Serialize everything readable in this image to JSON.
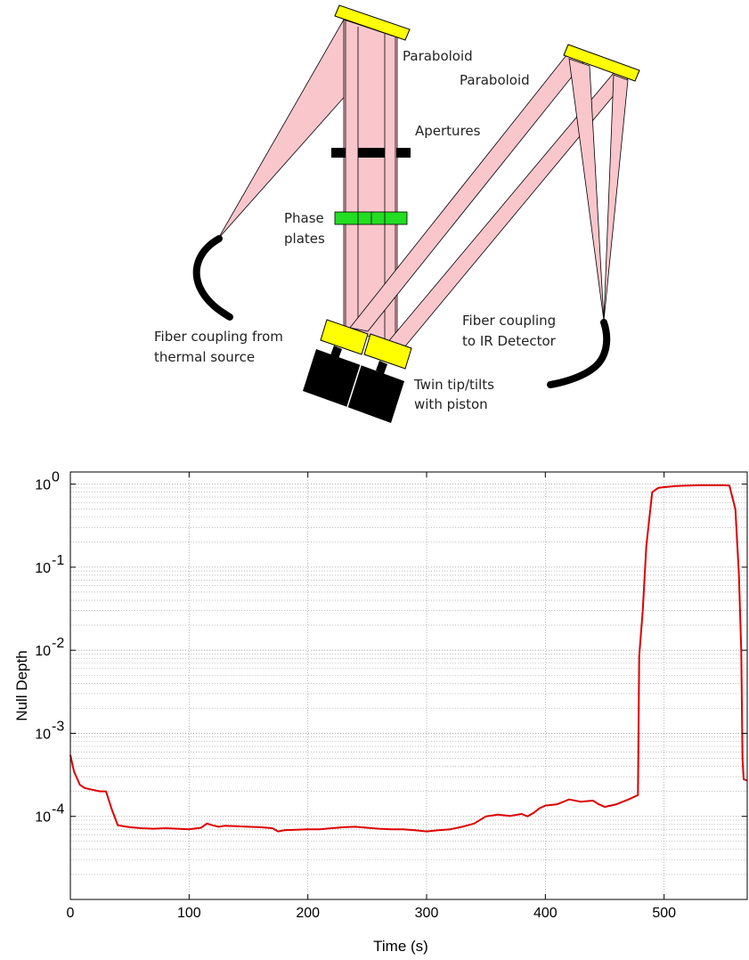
{
  "diagram": {
    "labels": {
      "paraboloid_left": "Paraboloid",
      "paraboloid_right": "Paraboloid",
      "apertures": "Apertures",
      "phase_line1": "Phase",
      "phase_line2": "plates",
      "fiber_source_line1": "Fiber coupling from",
      "fiber_source_line2": "thermal source",
      "fiber_detector_line1": "Fiber coupling",
      "fiber_detector_line2": "to IR Detector",
      "tiptilt_line1": "Twin tip/tilts",
      "tiptilt_line2": "with piston"
    },
    "colors": {
      "mirror": "#ffff00",
      "beam": "#f9c6cc",
      "phase_plate": "#22dd22",
      "fiber": "#000000",
      "actuator": "#000000"
    }
  },
  "chart_data": {
    "type": "line",
    "title": "",
    "xlabel": "Time (s)",
    "ylabel": "Null Depth",
    "xlim": [
      0,
      570
    ],
    "ylim": [
      1e-05,
      1.4
    ],
    "yscale": "log",
    "grid": true,
    "minor_grid": true,
    "x_ticks": [
      0,
      100,
      200,
      300,
      400,
      500
    ],
    "y_ticks": [
      {
        "value": 0.0001,
        "base": "10",
        "exp": "-4"
      },
      {
        "value": 0.001,
        "base": "10",
        "exp": "-3"
      },
      {
        "value": 0.01,
        "base": "10",
        "exp": "-2"
      },
      {
        "value": 0.1,
        "base": "10",
        "exp": "-1"
      },
      {
        "value": 1,
        "base": "10",
        "exp": "0"
      }
    ],
    "series": [
      {
        "color": "#dd0000",
        "x": [
          0,
          3,
          8,
          12,
          18,
          25,
          30,
          35,
          40,
          50,
          60,
          70,
          80,
          90,
          100,
          110,
          115,
          120,
          125,
          130,
          140,
          150,
          160,
          170,
          175,
          180,
          190,
          200,
          210,
          220,
          230,
          240,
          250,
          260,
          270,
          280,
          290,
          300,
          310,
          320,
          330,
          340,
          350,
          360,
          370,
          380,
          385,
          390,
          395,
          400,
          410,
          420,
          430,
          440,
          445,
          450,
          460,
          470,
          478,
          479,
          482,
          485,
          490,
          495,
          500,
          510,
          520,
          530,
          540,
          550,
          555,
          560,
          563,
          565,
          566,
          567,
          570
        ],
        "y": [
          0.00055,
          0.00035,
          0.00024,
          0.00022,
          0.00021,
          0.0002,
          0.0002,
          0.00012,
          7.8e-05,
          7.4e-05,
          7.2e-05,
          7.1e-05,
          7.2e-05,
          7.1e-05,
          7e-05,
          7.3e-05,
          8.2e-05,
          7.8e-05,
          7.5e-05,
          7.7e-05,
          7.6e-05,
          7.5e-05,
          7.4e-05,
          7.2e-05,
          6.6e-05,
          6.8e-05,
          6.9e-05,
          7e-05,
          7e-05,
          7.2e-05,
          7.4e-05,
          7.5e-05,
          7.3e-05,
          7.1e-05,
          7e-05,
          7e-05,
          6.8e-05,
          6.6e-05,
          6.8e-05,
          7e-05,
          7.5e-05,
          8.2e-05,
          0.0001,
          0.000105,
          0.000101,
          0.000107,
          0.0001,
          0.00011,
          0.000125,
          0.000135,
          0.00014,
          0.00016,
          0.00015,
          0.000155,
          0.00014,
          0.00013,
          0.00014,
          0.00016,
          0.00018,
          0.0085,
          0.03,
          0.18,
          0.8,
          0.9,
          0.92,
          0.95,
          0.96,
          0.97,
          0.97,
          0.97,
          0.96,
          0.5,
          0.08,
          0.01,
          0.0005,
          0.00028,
          0.00027
        ]
      }
    ]
  }
}
